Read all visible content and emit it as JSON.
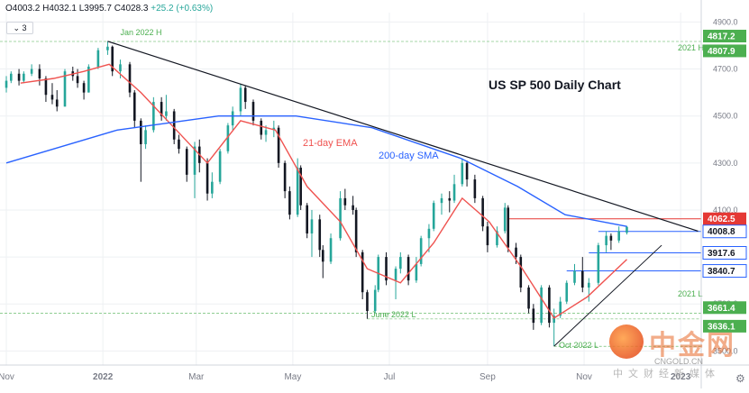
{
  "header": {
    "open": "O4003.2",
    "high": "H4032.1",
    "low": "L3995.7",
    "close": "C4028.3",
    "change": "+25.2 (+0.63%)",
    "sub_label": "3"
  },
  "watermark": {
    "brand": "中金网",
    "url": "CNGOLD.CN",
    "sub": "中文财经新媒体"
  },
  "colors": {
    "up": "#26a69a",
    "down": "#131722",
    "ema": "#ef5350",
    "sma": "#2962ff",
    "trend": "#131722",
    "resistance": "#e53935",
    "support": "#2962ff",
    "green_level": "#4caf50"
  },
  "chart_data": {
    "type": "candlestick",
    "title": "US SP 500 Daily Chart",
    "x_tick_labels": [
      "Nov",
      "2022",
      "Mar",
      "May",
      "Jul",
      "Sep",
      "Nov",
      "2023"
    ],
    "y_tick_labels": [
      "4900.0",
      "4700.0",
      "4500.0",
      "4300.0",
      "4100.0",
      "3900.0",
      "3700.0",
      "3500.0"
    ],
    "ylim": [
      3440,
      4940
    ],
    "grid": true,
    "series": [
      {
        "name": "21-day EMA",
        "x": [
          "2021-11-10",
          "2021-12-01",
          "2021-12-20",
          "2022-01-05",
          "2022-01-25",
          "2022-02-15",
          "2022-03-08",
          "2022-03-29",
          "2022-04-20",
          "2022-05-10",
          "2022-05-31",
          "2022-06-17",
          "2022-07-08",
          "2022-07-29",
          "2022-08-16",
          "2022-09-02",
          "2022-09-23",
          "2022-10-13",
          "2022-11-03",
          "2022-11-28"
        ],
        "values": [
          4640,
          4660,
          4690,
          4720,
          4600,
          4450,
          4300,
          4480,
          4440,
          4200,
          4050,
          3850,
          3790,
          3960,
          4150,
          4050,
          3850,
          3640,
          3730,
          3890
        ]
      },
      {
        "name": "200-day SMA",
        "x": [
          "2021-11-01",
          "2022-01-10",
          "2022-03-15",
          "2022-05-03",
          "2022-06-20",
          "2022-08-15",
          "2022-09-20",
          "2022-10-20",
          "2022-11-28"
        ],
        "values": [
          4300,
          4440,
          4500,
          4500,
          4450,
          4320,
          4200,
          4080,
          4030
        ]
      }
    ],
    "levels": [
      {
        "label": "4817.2",
        "value": 4817.2
      },
      {
        "label": "4807.9",
        "value": 4807.9
      },
      {
        "label": "4062.5",
        "value": 4062.5
      },
      {
        "label": "4008.8",
        "value": 4008.8
      },
      {
        "label": "3917.6",
        "value": 3917.6
      },
      {
        "label": "3840.7",
        "value": 3840.7
      },
      {
        "label": "3661.4",
        "value": 3661.4
      },
      {
        "label": "3636.1",
        "value": 3636.1
      }
    ],
    "annotations": [
      {
        "text": "Jan 2022 H"
      },
      {
        "text": "2021 H"
      },
      {
        "text": "21-day EMA"
      },
      {
        "text": "200-day SMA"
      },
      {
        "text": "2021 L"
      },
      {
        "text": "June 2022 L"
      },
      {
        "text": "Oct 2022 L"
      }
    ],
    "candles": [
      [
        "2021-11-01",
        4620,
        4670,
        4600,
        4650
      ],
      [
        "2021-11-04",
        4650,
        4690,
        4640,
        4680
      ],
      [
        "2021-11-09",
        4680,
        4700,
        4630,
        4650
      ],
      [
        "2021-11-12",
        4650,
        4690,
        4640,
        4680
      ],
      [
        "2021-11-17",
        4680,
        4720,
        4670,
        4700
      ],
      [
        "2021-11-22",
        4700,
        4720,
        4630,
        4660
      ],
      [
        "2021-11-26",
        4660,
        4670,
        4560,
        4590
      ],
      [
        "2021-11-30",
        4590,
        4640,
        4550,
        4570
      ],
      [
        "2021-12-03",
        4570,
        4610,
        4520,
        4540
      ],
      [
        "2021-12-08",
        4540,
        4700,
        4540,
        4690
      ],
      [
        "2021-12-13",
        4690,
        4710,
        4650,
        4670
      ],
      [
        "2021-12-16",
        4670,
        4700,
        4620,
        4640
      ],
      [
        "2021-12-20",
        4640,
        4650,
        4570,
        4600
      ],
      [
        "2021-12-23",
        4600,
        4720,
        4600,
        4710
      ],
      [
        "2021-12-29",
        4710,
        4790,
        4700,
        4780
      ],
      [
        "2022-01-04",
        4780,
        4818,
        4760,
        4795
      ],
      [
        "2022-01-07",
        4795,
        4800,
        4670,
        4690
      ],
      [
        "2022-01-12",
        4690,
        4740,
        4660,
        4720
      ],
      [
        "2022-01-18",
        4720,
        4730,
        4580,
        4600
      ],
      [
        "2022-01-21",
        4600,
        4610,
        4450,
        4480
      ],
      [
        "2022-01-25",
        4480,
        4490,
        4220,
        4380
      ],
      [
        "2022-01-28",
        4380,
        4460,
        4360,
        4440
      ],
      [
        "2022-02-02",
        4440,
        4580,
        4430,
        4560
      ],
      [
        "2022-02-07",
        4560,
        4580,
        4480,
        4500
      ],
      [
        "2022-02-10",
        4500,
        4590,
        4480,
        4520
      ],
      [
        "2022-02-15",
        4520,
        4530,
        4380,
        4400
      ],
      [
        "2022-02-18",
        4400,
        4420,
        4340,
        4360
      ],
      [
        "2022-02-23",
        4360,
        4370,
        4220,
        4250
      ],
      [
        "2022-02-28",
        4250,
        4390,
        4150,
        4370
      ],
      [
        "2022-03-03",
        4370,
        4400,
        4260,
        4300
      ],
      [
        "2022-03-08",
        4300,
        4320,
        4140,
        4170
      ],
      [
        "2022-03-11",
        4170,
        4260,
        4150,
        4220
      ],
      [
        "2022-03-16",
        4220,
        4360,
        4210,
        4350
      ],
      [
        "2022-03-21",
        4350,
        4470,
        4340,
        4460
      ],
      [
        "2022-03-24",
        4460,
        4540,
        4440,
        4520
      ],
      [
        "2022-03-29",
        4520,
        4637,
        4500,
        4620
      ],
      [
        "2022-04-01",
        4620,
        4630,
        4530,
        4560
      ],
      [
        "2022-04-06",
        4560,
        4570,
        4460,
        4480
      ],
      [
        "2022-04-11",
        4480,
        4490,
        4400,
        4420
      ],
      [
        "2022-04-14",
        4420,
        4460,
        4390,
        4440
      ],
      [
        "2022-04-19",
        4440,
        4480,
        4410,
        4450
      ],
      [
        "2022-04-22",
        4450,
        4460,
        4280,
        4300
      ],
      [
        "2022-04-26",
        4300,
        4310,
        4150,
        4180
      ],
      [
        "2022-04-29",
        4180,
        4200,
        4060,
        4080
      ],
      [
        "2022-05-04",
        4080,
        4320,
        4070,
        4280
      ],
      [
        "2022-05-06",
        4280,
        4290,
        4100,
        4120
      ],
      [
        "2022-05-10",
        4120,
        4130,
        3980,
        4000
      ],
      [
        "2022-05-13",
        4000,
        4100,
        3900,
        4060
      ],
      [
        "2022-05-18",
        4060,
        4080,
        3900,
        3930
      ],
      [
        "2022-05-20",
        3930,
        3950,
        3810,
        3880
      ],
      [
        "2022-05-25",
        3880,
        4000,
        3870,
        3980
      ],
      [
        "2022-05-31",
        3980,
        4180,
        3970,
        4150
      ],
      [
        "2022-06-03",
        4150,
        4190,
        4100,
        4120
      ],
      [
        "2022-06-08",
        4120,
        4160,
        4080,
        4100
      ],
      [
        "2022-06-10",
        4100,
        4110,
        3900,
        3920
      ],
      [
        "2022-06-14",
        3920,
        3930,
        3720,
        3750
      ],
      [
        "2022-06-17",
        3750,
        3760,
        3637,
        3670
      ],
      [
        "2022-06-22",
        3670,
        3780,
        3660,
        3760
      ],
      [
        "2022-06-24",
        3760,
        3910,
        3750,
        3900
      ],
      [
        "2022-06-29",
        3900,
        3920,
        3780,
        3800
      ],
      [
        "2022-07-05",
        3800,
        3860,
        3720,
        3850
      ],
      [
        "2022-07-08",
        3850,
        3920,
        3830,
        3900
      ],
      [
        "2022-07-13",
        3900,
        3910,
        3780,
        3800
      ],
      [
        "2022-07-18",
        3800,
        3900,
        3790,
        3870
      ],
      [
        "2022-07-21",
        3870,
        3990,
        3860,
        3980
      ],
      [
        "2022-07-26",
        3980,
        4040,
        3920,
        4020
      ],
      [
        "2022-07-29",
        4020,
        4140,
        4010,
        4130
      ],
      [
        "2022-08-03",
        4130,
        4170,
        4080,
        4150
      ],
      [
        "2022-08-08",
        4150,
        4180,
        4090,
        4140
      ],
      [
        "2022-08-11",
        4140,
        4250,
        4130,
        4210
      ],
      [
        "2022-08-16",
        4210,
        4320,
        4200,
        4300
      ],
      [
        "2022-08-19",
        4300,
        4310,
        4200,
        4230
      ],
      [
        "2022-08-24",
        4230,
        4250,
        4130,
        4150
      ],
      [
        "2022-08-29",
        4150,
        4160,
        4010,
        4030
      ],
      [
        "2022-09-01",
        4030,
        4050,
        3920,
        3950
      ],
      [
        "2022-09-07",
        3950,
        4030,
        3940,
        4010
      ],
      [
        "2022-09-12",
        4010,
        4130,
        4000,
        4110
      ],
      [
        "2022-09-14",
        4110,
        4120,
        3920,
        3940
      ],
      [
        "2022-09-19",
        3940,
        3960,
        3870,
        3900
      ],
      [
        "2022-09-22",
        3900,
        3910,
        3750,
        3770
      ],
      [
        "2022-09-27",
        3770,
        3780,
        3660,
        3680
      ],
      [
        "2022-09-30",
        3680,
        3700,
        3590,
        3620
      ],
      [
        "2022-10-05",
        3620,
        3780,
        3610,
        3770
      ],
      [
        "2022-10-10",
        3770,
        3780,
        3600,
        3620
      ],
      [
        "2022-10-13",
        3620,
        3680,
        3520,
        3650
      ],
      [
        "2022-10-17",
        3650,
        3730,
        3640,
        3710
      ],
      [
        "2022-10-21",
        3710,
        3800,
        3700,
        3790
      ],
      [
        "2022-10-26",
        3790,
        3870,
        3780,
        3840
      ],
      [
        "2022-10-31",
        3840,
        3900,
        3750,
        3770
      ],
      [
        "2022-11-04",
        3770,
        3810,
        3710,
        3790
      ],
      [
        "2022-11-10",
        3790,
        3960,
        3780,
        3950
      ],
      [
        "2022-11-15",
        3950,
        4010,
        3920,
        3990
      ],
      [
        "2022-11-18",
        3990,
        4000,
        3930,
        3970
      ],
      [
        "2022-11-23",
        3970,
        4030,
        3960,
        4010
      ],
      [
        "2022-11-28",
        4003.2,
        4032.1,
        3995.7,
        4028.3
      ]
    ]
  }
}
